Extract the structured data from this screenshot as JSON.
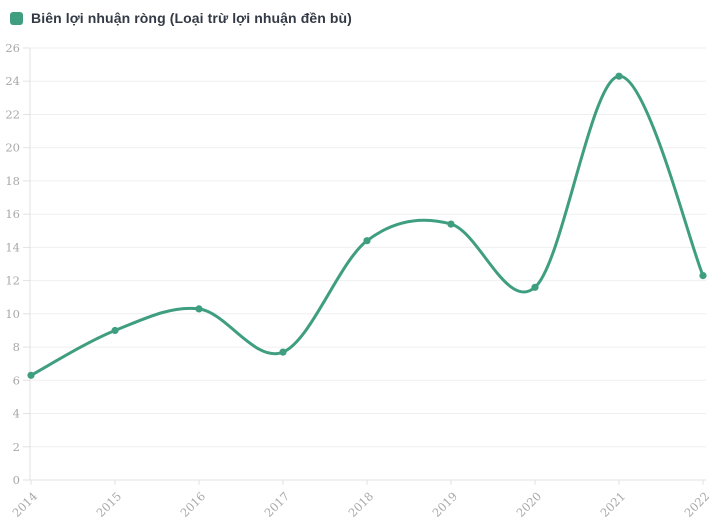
{
  "legend": {
    "label": "Biên lợi nhuận ròng (Loại trừ lợi nhuận đền bù)"
  },
  "colors": {
    "series": "#3f9e80",
    "grid": "#efefef",
    "axis_line": "#e2e2e2",
    "tick_label": "#a8a8a8",
    "legend_text": "#333a45",
    "background": "#ffffff"
  },
  "chart_data": {
    "type": "line",
    "title": "",
    "xlabel": "",
    "ylabel": "",
    "categories": [
      "2014",
      "2015",
      "2016",
      "2017",
      "2018",
      "2019",
      "2020",
      "2021",
      "2022"
    ],
    "series": [
      {
        "name": "Biên lợi nhuận ròng (Loại trừ lợi nhuận đền bù)",
        "color": "#3f9e80",
        "values": [
          6.3,
          9.0,
          10.3,
          7.7,
          14.4,
          15.4,
          11.6,
          24.3,
          12.3
        ]
      }
    ],
    "ylim": [
      0,
      26
    ],
    "y_ticks": [
      0,
      2,
      4,
      6,
      8,
      10,
      12,
      14,
      16,
      18,
      20,
      22,
      24,
      26
    ],
    "grid": true,
    "smooth": true,
    "markers": true,
    "legend_position": "top-left"
  }
}
